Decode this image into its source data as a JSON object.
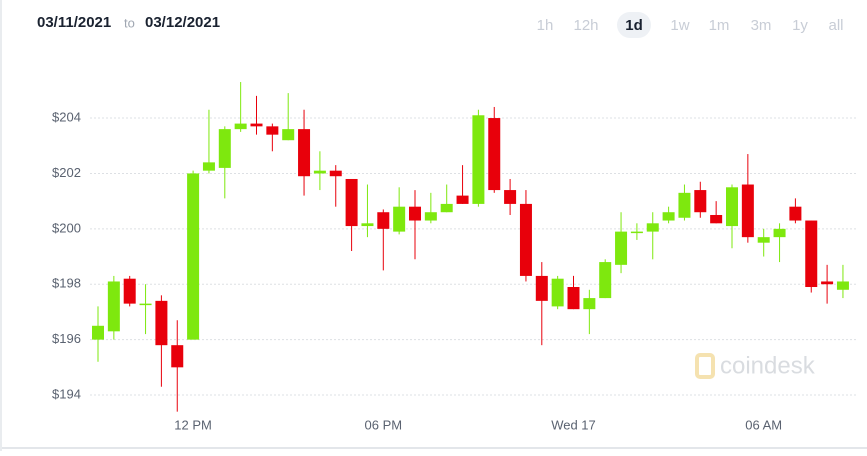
{
  "header": {
    "from": "03/11/2021",
    "to": "to",
    "until": "03/12/2021",
    "ranges": [
      "1h",
      "12h",
      "1d",
      "1w",
      "1m",
      "3m",
      "1y",
      "all"
    ],
    "selected": "1d"
  },
  "watermark": "coindesk",
  "chart_data": {
    "type": "candlestick",
    "categories": [
      null,
      null,
      null,
      null,
      null,
      null,
      "12 PM",
      null,
      null,
      null,
      null,
      null,
      null,
      null,
      null,
      null,
      null,
      null,
      "06 PM",
      null,
      null,
      null,
      null,
      null,
      null,
      null,
      null,
      null,
      null,
      null,
      "Wed 17",
      null,
      null,
      null,
      null,
      null,
      null,
      null,
      null,
      null,
      null,
      null,
      "06 AM",
      null,
      null,
      null,
      null,
      null
    ],
    "open": [
      196.0,
      196.3,
      198.2,
      197.3,
      197.4,
      195.8,
      196.0,
      202.1,
      202.2,
      203.6,
      203.8,
      203.7,
      203.2,
      203.6,
      202.0,
      202.1,
      201.8,
      200.1,
      200.6,
      199.9,
      200.8,
      200.3,
      200.6,
      201.2,
      200.9,
      204.0,
      201.4,
      200.9,
      198.3,
      197.2,
      197.9,
      197.1,
      197.5,
      198.7,
      199.9,
      199.9,
      200.3,
      200.4,
      201.4,
      200.5,
      200.1,
      201.6,
      199.5,
      199.7,
      200.8,
      200.3,
      198.1,
      197.8
    ],
    "high": [
      197.2,
      198.3,
      198.3,
      198.0,
      197.6,
      196.7,
      202.1,
      204.3,
      203.7,
      205.3,
      204.8,
      203.8,
      204.9,
      204.3,
      202.8,
      202.3,
      201.8,
      201.6,
      200.7,
      201.5,
      201.4,
      201.3,
      201.6,
      202.3,
      204.3,
      204.4,
      201.8,
      201.4,
      198.8,
      198.3,
      198.3,
      197.8,
      198.9,
      200.6,
      200.2,
      200.6,
      200.8,
      201.6,
      201.7,
      201.0,
      201.6,
      202.7,
      200.0,
      200.2,
      201.1,
      200.3,
      198.7,
      198.7
    ],
    "low": [
      195.2,
      196.0,
      197.2,
      196.2,
      194.3,
      193.4,
      196.0,
      202.0,
      201.1,
      203.5,
      203.4,
      202.8,
      203.2,
      201.2,
      201.4,
      200.8,
      199.2,
      199.7,
      198.5,
      199.8,
      198.9,
      200.2,
      200.6,
      200.9,
      200.8,
      201.3,
      200.5,
      198.1,
      195.8,
      197.1,
      197.1,
      196.2,
      197.5,
      198.4,
      199.6,
      198.9,
      200.2,
      200.3,
      200.4,
      200.2,
      199.3,
      199.5,
      199.0,
      198.8,
      200.2,
      197.7,
      197.3,
      197.5
    ],
    "close": [
      196.5,
      198.1,
      197.3,
      197.3,
      195.8,
      195.0,
      202.0,
      202.4,
      203.6,
      203.8,
      203.7,
      203.4,
      203.6,
      201.9,
      202.1,
      201.9,
      200.1,
      200.2,
      200.0,
      200.8,
      200.3,
      200.6,
      200.9,
      200.9,
      204.1,
      201.4,
      200.9,
      198.3,
      197.4,
      198.2,
      197.1,
      197.5,
      198.8,
      199.9,
      199.9,
      200.2,
      200.6,
      201.3,
      200.6,
      200.2,
      201.5,
      199.7,
      199.7,
      200.0,
      200.3,
      197.9,
      198.0,
      198.1
    ],
    "up_color": "#7ee80e",
    "down_color": "#e8000b",
    "ylim": [
      192.9,
      205.5
    ],
    "yticks": [
      {
        "value": 194,
        "label": "$194"
      },
      {
        "value": 196,
        "label": "$196"
      },
      {
        "value": 198,
        "label": "$198"
      },
      {
        "value": 200,
        "label": "$200"
      },
      {
        "value": 202,
        "label": "$202"
      },
      {
        "value": 204,
        "label": "$204"
      }
    ],
    "grid": true
  }
}
